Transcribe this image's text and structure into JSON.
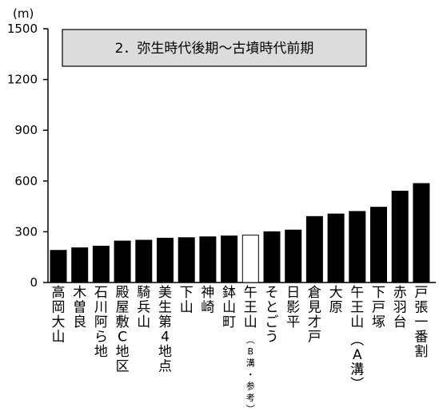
{
  "chart_data": {
    "type": "bar",
    "title": "2．弥生時代後期〜古墳時代前期",
    "unit": "(m)",
    "ylim": [
      0,
      1500
    ],
    "yticks": [
      0,
      300,
      600,
      900,
      1200,
      1500
    ],
    "categories": [
      {
        "label": "高岡大山",
        "note": ""
      },
      {
        "label": "木曽良",
        "note": ""
      },
      {
        "label": "石川阿ら地",
        "note": ""
      },
      {
        "label": "殿屋敷C地区",
        "note": ""
      },
      {
        "label": "騎兵山",
        "note": ""
      },
      {
        "label": "美生第4地点",
        "note": ""
      },
      {
        "label": "下山",
        "note": ""
      },
      {
        "label": "神崎",
        "note": ""
      },
      {
        "label": "鉢山町",
        "note": ""
      },
      {
        "label": "午王山",
        "note": "(B溝・参考)"
      },
      {
        "label": "そとごう",
        "note": ""
      },
      {
        "label": "日影平",
        "note": ""
      },
      {
        "label": "倉見才戸",
        "note": ""
      },
      {
        "label": "大原",
        "note": ""
      },
      {
        "label": "午王山",
        "note": "(A溝)"
      },
      {
        "label": "下戸塚",
        "note": ""
      },
      {
        "label": "赤羽台",
        "note": ""
      },
      {
        "label": "戸張一番割",
        "note": ""
      }
    ],
    "values": [
      190,
      205,
      215,
      245,
      250,
      262,
      265,
      270,
      275,
      280,
      300,
      310,
      390,
      405,
      420,
      445,
      540,
      585
    ],
    "fill": [
      "#000000",
      "#000000",
      "#000000",
      "#000000",
      "#000000",
      "#000000",
      "#000000",
      "#000000",
      "#000000",
      "#ffffff",
      "#000000",
      "#000000",
      "#000000",
      "#000000",
      "#000000",
      "#000000",
      "#000000",
      "#000000"
    ],
    "colors": {
      "bar": "#000000",
      "bar_reference": "#ffffff",
      "title_box": "#dcdcdc",
      "axis": "#000000"
    },
    "grid": false
  }
}
